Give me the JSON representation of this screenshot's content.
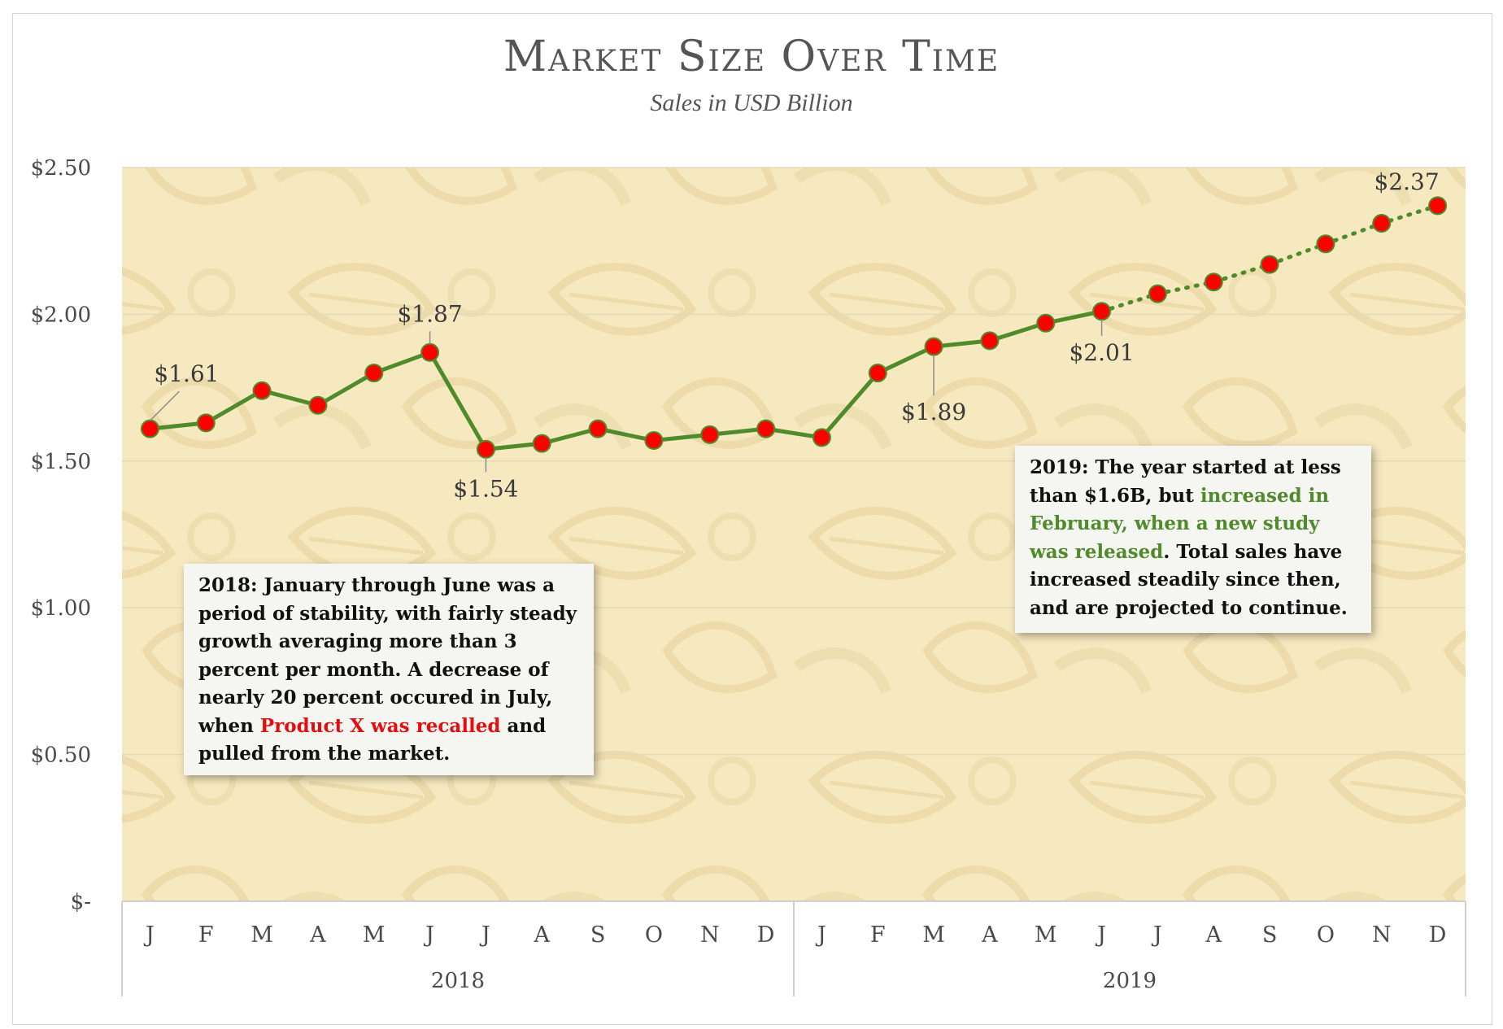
{
  "chart_data": {
    "type": "line",
    "title": "Market Size Over Time",
    "subtitle": "Sales in USD Billion",
    "y_tick_labels": [
      "$-",
      "$0.50",
      "$1.00",
      "$1.50",
      "$2.00",
      "$2.50"
    ],
    "y_tick_values": [
      0,
      0.5,
      1.0,
      1.5,
      2.0,
      2.5
    ],
    "ylim": [
      0,
      2.5
    ],
    "categories": [
      "J",
      "F",
      "M",
      "A",
      "M",
      "J",
      "J",
      "A",
      "S",
      "O",
      "N",
      "D",
      "J",
      "F",
      "M",
      "A",
      "M",
      "J",
      "J",
      "A",
      "S",
      "O",
      "N",
      "D"
    ],
    "groups": [
      {
        "label": "2018",
        "count": 12
      },
      {
        "label": "2019",
        "count": 12
      }
    ],
    "values": [
      1.61,
      1.63,
      1.74,
      1.69,
      1.8,
      1.87,
      1.54,
      1.56,
      1.61,
      1.57,
      1.59,
      1.61,
      1.58,
      1.8,
      1.89,
      1.91,
      1.97,
      2.01,
      2.07,
      2.11,
      2.17,
      2.24,
      2.31,
      2.37
    ],
    "actual_points": 18,
    "projected_from_index": 17,
    "line_color": "#4f8a2b",
    "marker_color": "#ff0000",
    "background_color": "#f7e9bf",
    "grid": true,
    "data_labels": [
      {
        "index": 0,
        "text": "$1.61",
        "placement": "above"
      },
      {
        "index": 5,
        "text": "$1.87",
        "placement": "above"
      },
      {
        "index": 6,
        "text": "$1.54",
        "placement": "below"
      },
      {
        "index": 14,
        "text": "$1.89",
        "placement": "below"
      },
      {
        "index": 17,
        "text": "$2.01",
        "placement": "below"
      },
      {
        "index": 23,
        "text": "$2.37",
        "placement": "above"
      }
    ]
  },
  "annotations": {
    "note_2018": {
      "prefix": "2018: January through June was a period of stability, with fairly steady growth averaging more than 3 percent per month. A decrease of nearly 20 percent occured in July, when ",
      "highlight": "Product X was recalled",
      "suffix": " and pulled from the market.",
      "highlight_color": "#e01010"
    },
    "note_2019": {
      "prefix": "2019: The year started at less than $1.6B, but ",
      "highlight": "increased in February, when a new study was released",
      "suffix": ". Total sales have increased steadily since then, and are projected to continue.",
      "highlight_color": "#4f8a2b"
    }
  }
}
